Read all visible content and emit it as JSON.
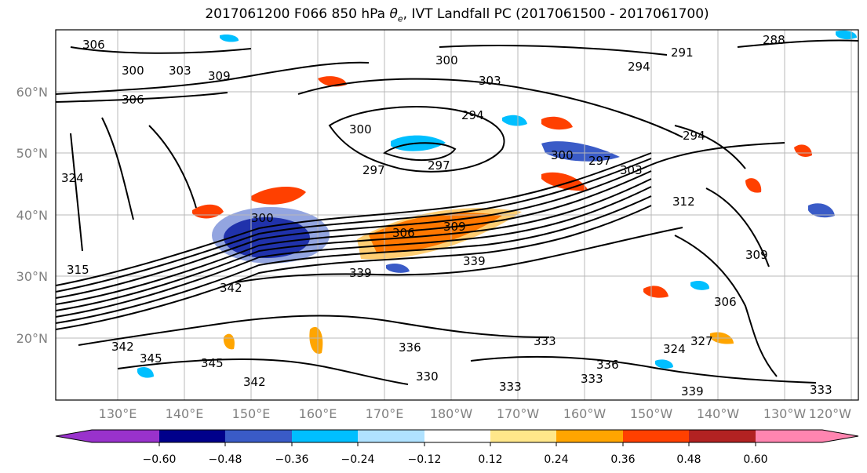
{
  "title": {
    "prefix": "2017061200 F066 850 hPa ",
    "symbol": "θ",
    "subscript": "e",
    "suffix": ", IVT Landfall PC (2017061500 - 2017061700)"
  },
  "latitude_labels": [
    "60°N",
    "50°N",
    "40°N",
    "30°N",
    "20°N"
  ],
  "longitude_labels": [
    "130°E",
    "140°E",
    "150°E",
    "160°E",
    "170°E",
    "180°W",
    "170°W",
    "160°W",
    "150°W",
    "140°W",
    "130°W",
    "120°W"
  ],
  "contour_labels": [
    "306",
    "300",
    "303",
    "309",
    "306",
    "324",
    "315",
    "342",
    "345",
    "345",
    "342",
    "300",
    "303",
    "294",
    "300",
    "297",
    "297",
    "300",
    "297",
    "294",
    "312",
    "303",
    "306",
    "309",
    "339",
    "339",
    "342",
    "333",
    "336",
    "330",
    "333",
    "333",
    "336",
    "339",
    "333",
    "324",
    "327",
    "306",
    "309",
    "291",
    "294",
    "288",
    "300"
  ],
  "colorbar": {
    "tick_labels": [
      "−0.60",
      "−0.48",
      "−0.36",
      "−0.24",
      "−0.12",
      "0.12",
      "0.24",
      "0.36",
      "0.48",
      "0.60"
    ],
    "colors": [
      "#9932cc",
      "#00008b",
      "#3a5bc7",
      "#00bfff",
      "#b0e2ff",
      "#ffffff",
      "#ffe78a",
      "#ffa500",
      "#ff4000",
      "#b22222",
      "#ff85b0"
    ]
  }
}
